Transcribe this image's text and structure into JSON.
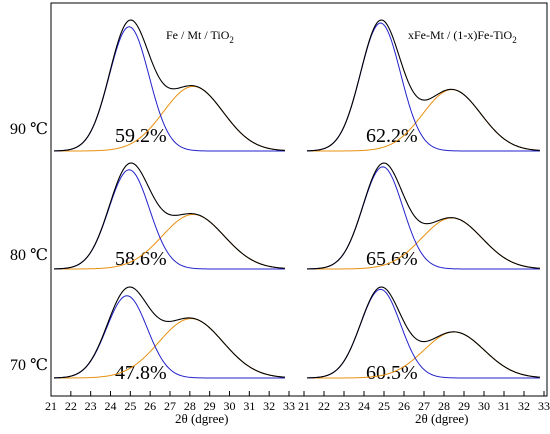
{
  "chart_data": {
    "type": "line",
    "title_left": "Fe / Mt / TiO",
    "title_left_sub": "2",
    "title_right": "xFe-Mt / (1-x)Fe-TiO",
    "title_right_sub": "2",
    "xlabel": "2θ (dgree)",
    "xlim": [
      21,
      33
    ],
    "x_ticks": [
      21,
      22,
      23,
      24,
      25,
      26,
      27,
      28,
      29,
      30,
      31,
      32,
      33
    ],
    "rows": [
      {
        "temperature": "90 ℃",
        "left_pct": "59.2%",
        "right_pct": "62.2%"
      },
      {
        "temperature": "80 ℃",
        "left_pct": "58.6%",
        "right_pct": "65.6%"
      },
      {
        "temperature": "70 ℃",
        "left_pct": "47.8%",
        "right_pct": "60.5%"
      }
    ],
    "series_colors": {
      "total": "#000000",
      "peak1": "#2222cc",
      "peak2": "#e8900f"
    },
    "peaks": {
      "left": [
        {
          "c1": 25.4,
          "a1": 1.0,
          "s1": 0.9,
          "c2": 28.3,
          "a2": 0.52,
          "s2": 1.35
        },
        {
          "c1": 25.4,
          "a1": 1.0,
          "s1": 0.92,
          "c2": 28.3,
          "a2": 0.55,
          "s2": 1.4
        },
        {
          "c1": 25.3,
          "a1": 0.9,
          "s1": 0.92,
          "c2": 28.2,
          "a2": 0.65,
          "s2": 1.45
        }
      ],
      "right": [
        {
          "c1": 25.3,
          "a1": 1.0,
          "s1": 0.9,
          "c2": 28.5,
          "a2": 0.48,
          "s2": 1.3
        },
        {
          "c1": 25.4,
          "a1": 1.0,
          "s1": 0.9,
          "c2": 28.5,
          "a2": 0.5,
          "s2": 1.35
        },
        {
          "c1": 25.3,
          "a1": 1.0,
          "s1": 0.9,
          "c2": 28.6,
          "a2": 0.52,
          "s2": 1.35
        }
      ]
    }
  }
}
